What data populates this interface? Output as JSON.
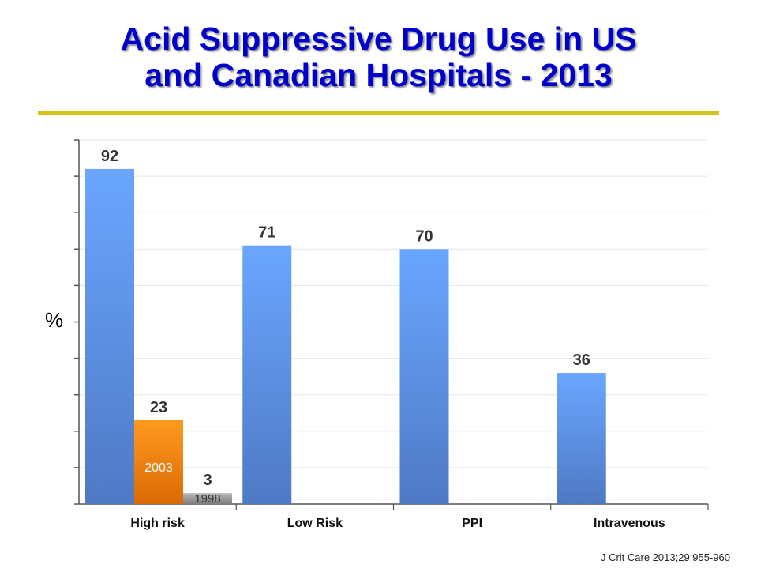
{
  "title_line1": "Acid Suppressive Drug Use in US",
  "title_line2": "and Canadian Hospitals - 2013",
  "citation": "J Crit Care 2013;29:955-960",
  "colors": {
    "title": "#0000cc",
    "rule": "#d4c41a",
    "bar_blue_top": "#6aa6ff",
    "bar_blue_bottom": "#4f79c4",
    "bar_orange_top": "#ff9a1f",
    "bar_orange_bottom": "#d96a05",
    "bar_gray_top": "#b8b8b8",
    "bar_gray_bottom": "#7e7e7e",
    "grid": "#e6e6e6",
    "axis": "#555555"
  },
  "chart_data": {
    "type": "bar",
    "title": "Acid Suppressive Drug Use in US and Canadian Hospitals - 2013",
    "ylabel": "%",
    "xlabel": "",
    "ylim": [
      0,
      100
    ],
    "grid": true,
    "categories": [
      "High risk",
      "Low Risk",
      "PPI",
      "Intravenous"
    ],
    "series": [
      {
        "values": [
          92,
          71,
          70,
          36
        ],
        "color": "blue"
      },
      {
        "name": "2003",
        "values": [
          23,
          null,
          null,
          null
        ],
        "color": "orange"
      },
      {
        "name": "1998",
        "values": [
          3,
          null,
          null,
          null
        ],
        "color": "gray"
      }
    ]
  }
}
